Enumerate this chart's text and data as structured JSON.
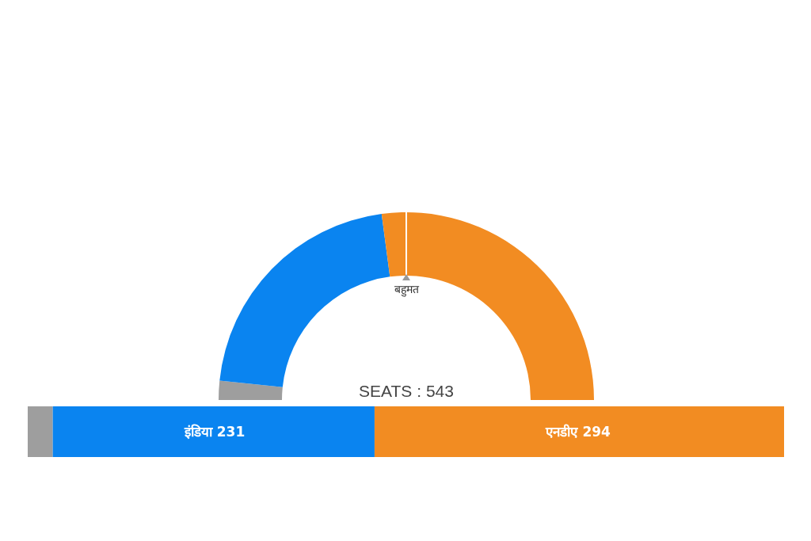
{
  "chart_data": [
    {
      "type": "donut",
      "categories": [
        null,
        null,
        null
      ],
      "values": [
        3.3,
        42.5,
        54.2
      ],
      "colors": [
        "#9e9e9e",
        "#0a84f0",
        "#f28c22"
      ],
      "annotations": [
        "बहुमत",
        "SEATS : 543"
      ]
    },
    {
      "type": "bar",
      "orientation": "horizontal",
      "stacked": true,
      "categories": [
        null
      ],
      "series": [
        {
          "color": "#9e9e9e",
          "values": [
            18
          ]
        },
        {
          "name": "इंडिया",
          "color": "#0a84f0",
          "values": [
            231
          ],
          "value_labels": [
            "231"
          ]
        },
        {
          "name": "एनडीए",
          "color": "#f28c22",
          "values": [
            294
          ],
          "value_labels": [
            "294"
          ]
        }
      ]
    }
  ]
}
